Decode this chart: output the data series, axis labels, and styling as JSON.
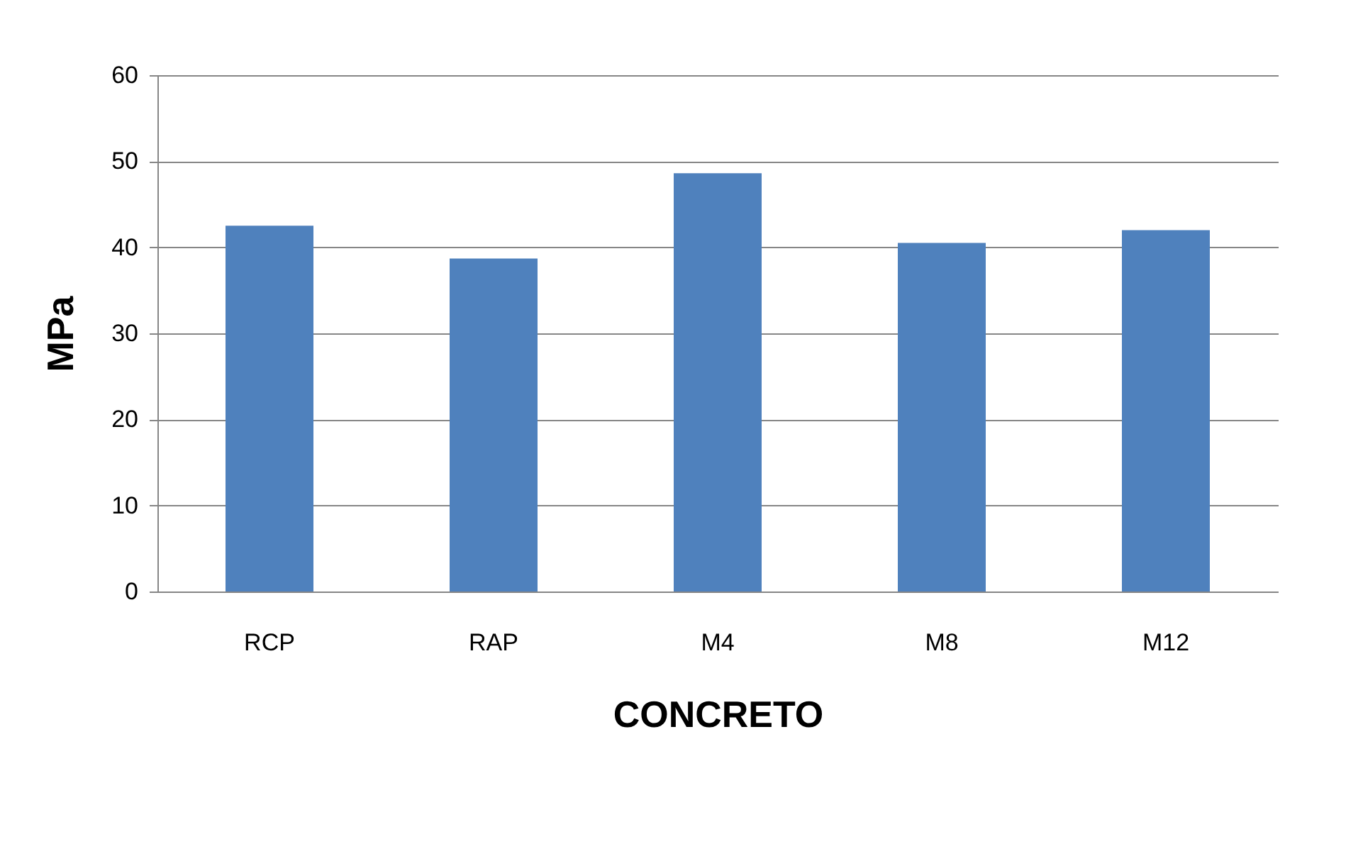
{
  "chart_data": {
    "type": "bar",
    "xlabel": "CONCRETO",
    "ylabel": "MPa",
    "categories": [
      "RCP",
      "RAP",
      "M4",
      "M8",
      "M12"
    ],
    "values": [
      42.5,
      38.7,
      48.6,
      40.5,
      42.0
    ],
    "color": "#4f81bd",
    "ylim": [
      0,
      60
    ],
    "yticks": [
      0,
      10,
      20,
      30,
      40,
      50,
      60
    ],
    "grid": "y"
  }
}
